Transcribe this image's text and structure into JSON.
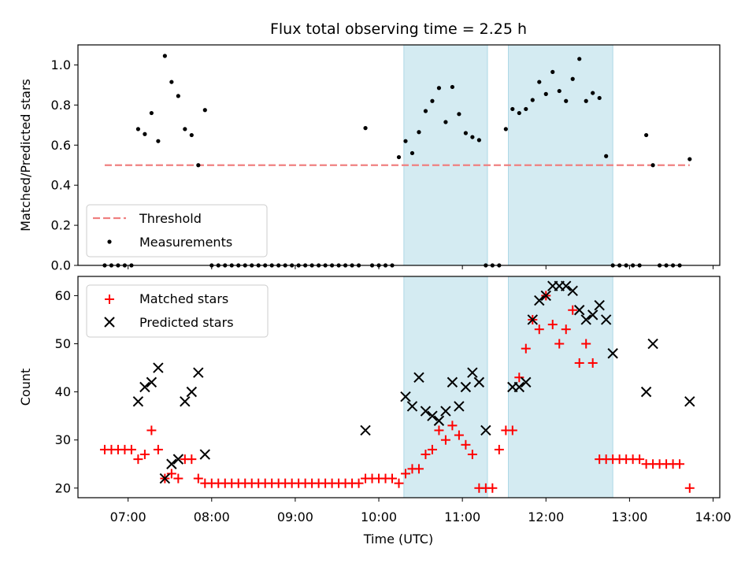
{
  "chart_data": {
    "title": "Flux total observing time = 2.25 h",
    "type": "scatter",
    "xlabel": "Time (UTC)",
    "xlim_hours": [
      6.4,
      14.08
    ],
    "x_ticks": [
      {
        "value": 7,
        "label": "07:00"
      },
      {
        "value": 8,
        "label": "08:00"
      },
      {
        "value": 9,
        "label": "09:00"
      },
      {
        "value": 10,
        "label": "10:00"
      },
      {
        "value": 11,
        "label": "11:00"
      },
      {
        "value": 12,
        "label": "12:00"
      },
      {
        "value": 13,
        "label": "13:00"
      },
      {
        "value": 14,
        "label": "14:00"
      }
    ],
    "shaded_intervals_hours": [
      [
        10.3,
        11.3
      ],
      [
        11.55,
        12.8
      ]
    ],
    "shade_color": "#add8e6",
    "panels": [
      {
        "ylabel": "Matched/Predicted stars",
        "ylim": [
          0,
          1.1
        ],
        "yticks": [
          "0.0",
          "0.2",
          "0.4",
          "0.6",
          "0.8",
          "1.0"
        ],
        "ytick_values": [
          0,
          0.2,
          0.4,
          0.6,
          0.8,
          1.0
        ],
        "legend_position": "lower-left",
        "threshold": {
          "name": "Threshold",
          "y": 0.5,
          "x_range": [
            6.72,
            13.72
          ],
          "color": "#f08080"
        },
        "measurements": {
          "name": "Measurements",
          "color": "#000000",
          "x": [
            6.72,
            6.8,
            6.88,
            6.96,
            7.04,
            7.12,
            7.2,
            7.28,
            7.36,
            7.44,
            7.52,
            7.6,
            7.68,
            7.76,
            7.84,
            7.92,
            8.0,
            8.08,
            8.16,
            8.24,
            8.32,
            8.4,
            8.48,
            8.56,
            8.64,
            8.72,
            8.8,
            8.88,
            8.96,
            9.04,
            9.12,
            9.2,
            9.28,
            9.36,
            9.44,
            9.52,
            9.6,
            9.68,
            9.76,
            9.84,
            9.92,
            10.0,
            10.08,
            10.16,
            10.24,
            10.32,
            10.4,
            10.48,
            10.56,
            10.64,
            10.72,
            10.8,
            10.88,
            10.96,
            11.04,
            11.12,
            11.2,
            11.28,
            11.36,
            11.44,
            11.52,
            11.6,
            11.68,
            11.76,
            11.84,
            11.92,
            12.0,
            12.08,
            12.16,
            12.24,
            12.32,
            12.4,
            12.48,
            12.56,
            12.64,
            12.72,
            12.8,
            12.88,
            12.96,
            13.04,
            13.12,
            13.2,
            13.28,
            13.36,
            13.44,
            13.52,
            13.6,
            13.72
          ],
          "y": [
            0,
            0,
            0,
            0,
            0,
            0.68,
            0.655,
            0.76,
            0.62,
            1.045,
            0.915,
            0.845,
            0.68,
            0.65,
            0.5,
            0.775,
            0,
            0,
            0,
            0,
            0,
            0,
            0,
            0,
            0,
            0,
            0,
            0,
            0,
            0,
            0,
            0,
            0,
            0,
            0,
            0,
            0,
            0,
            0,
            0.685,
            0,
            0,
            0,
            0,
            0.54,
            0.62,
            0.56,
            0.665,
            0.77,
            0.82,
            0.885,
            0.715,
            0.89,
            0.755,
            0.66,
            0.64,
            0.625,
            0,
            0,
            0,
            0.68,
            0.78,
            0.76,
            0.78,
            0.825,
            0.915,
            0.855,
            0.965,
            0.87,
            0.82,
            0.93,
            1.03,
            0.82,
            0.86,
            0.835,
            0.545,
            0,
            0,
            0,
            0,
            0,
            0.65,
            0.5,
            0,
            0,
            0,
            0,
            0.53
          ]
        }
      },
      {
        "ylabel": "Count",
        "ylim": [
          18,
          64
        ],
        "yticks": [
          "20",
          "30",
          "40",
          "50",
          "60"
        ],
        "ytick_values": [
          20,
          30,
          40,
          50,
          60
        ],
        "legend_position": "top-left",
        "series": [
          {
            "name": "Matched stars",
            "marker": "+",
            "color": "#ff0000",
            "x": [
              6.72,
              6.8,
              6.88,
              6.96,
              7.04,
              7.12,
              7.2,
              7.28,
              7.36,
              7.44,
              7.52,
              7.6,
              7.68,
              7.76,
              7.84,
              7.92,
              8.0,
              8.08,
              8.16,
              8.24,
              8.32,
              8.4,
              8.48,
              8.56,
              8.64,
              8.72,
              8.8,
              8.88,
              8.96,
              9.04,
              9.12,
              9.2,
              9.28,
              9.36,
              9.44,
              9.52,
              9.6,
              9.68,
              9.76,
              9.84,
              9.92,
              10.0,
              10.08,
              10.16,
              10.24,
              10.32,
              10.4,
              10.48,
              10.56,
              10.64,
              10.72,
              10.8,
              10.88,
              10.96,
              11.04,
              11.12,
              11.2,
              11.28,
              11.36,
              11.44,
              11.52,
              11.6,
              11.68,
              11.76,
              11.84,
              11.92,
              12.0,
              12.08,
              12.16,
              12.24,
              12.32,
              12.4,
              12.48,
              12.56,
              12.64,
              12.72,
              12.8,
              12.88,
              12.96,
              13.04,
              13.12,
              13.2,
              13.28,
              13.36,
              13.44,
              13.52,
              13.6,
              13.72
            ],
            "y": [
              28,
              28,
              28,
              28,
              28,
              26,
              27,
              32,
              28,
              22,
              23,
              22,
              26,
              26,
              22,
              21,
              21,
              21,
              21,
              21,
              21,
              21,
              21,
              21,
              21,
              21,
              21,
              21,
              21,
              21,
              21,
              21,
              21,
              21,
              21,
              21,
              21,
              21,
              21,
              22,
              22,
              22,
              22,
              22,
              21,
              23,
              24,
              24,
              27,
              28,
              32,
              30,
              33,
              31,
              29,
              27,
              20,
              20,
              20,
              28,
              32,
              32,
              43,
              49,
              55,
              53,
              60,
              54,
              50,
              53,
              57,
              46,
              50,
              46,
              26,
              26,
              26,
              26,
              26,
              26,
              26,
              25,
              25,
              25,
              25,
              25,
              25,
              20
            ]
          },
          {
            "name": "Predicted stars",
            "marker": "x",
            "color": "#000000",
            "x": [
              7.12,
              7.2,
              7.28,
              7.36,
              7.44,
              7.52,
              7.6,
              7.68,
              7.76,
              7.84,
              7.92,
              9.84,
              10.32,
              10.4,
              10.48,
              10.56,
              10.64,
              10.72,
              10.8,
              10.88,
              10.96,
              11.04,
              11.12,
              11.2,
              11.28,
              11.6,
              11.68,
              11.76,
              11.84,
              11.92,
              12.0,
              12.08,
              12.16,
              12.24,
              12.32,
              12.4,
              12.48,
              12.56,
              12.64,
              12.72,
              12.8,
              13.2,
              13.28,
              13.72
            ],
            "y": [
              38,
              41,
              42,
              45,
              22,
              25,
              26,
              38,
              40,
              44,
              27,
              32,
              39,
              37,
              43,
              36,
              35,
              34,
              36,
              42,
              37,
              41,
              44,
              42,
              32,
              41,
              41,
              42,
              55,
              59,
              60,
              62,
              62,
              62,
              61,
              57,
              55,
              56,
              58,
              55,
              48,
              40,
              50,
              38
            ]
          }
        ]
      }
    ]
  }
}
